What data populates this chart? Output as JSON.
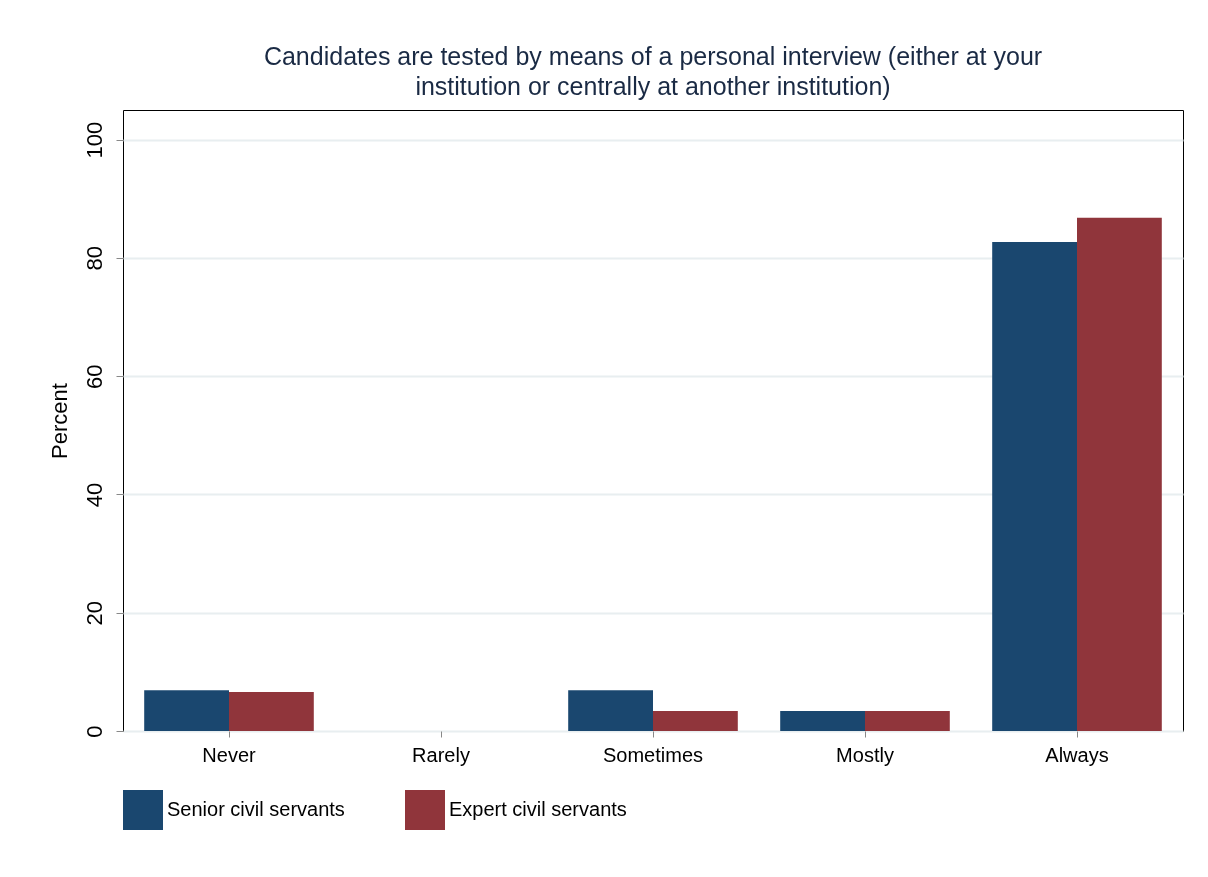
{
  "chart_data": {
    "type": "bar",
    "title": "Candidates are tested by means of a personal interview (either at your institution or centrally at another institution)",
    "ylabel": "Percent",
    "categories": [
      "Never",
      "Rarely",
      "Sometimes",
      "Mostly",
      "Always"
    ],
    "series": [
      {
        "name": "Senior civil servants",
        "color": "#1a476f",
        "values": [
          6.9,
          0,
          6.9,
          3.4,
          82.7
        ]
      },
      {
        "name": "Expert civil servants",
        "color": "#90353b",
        "values": [
          6.6,
          0,
          3.4,
          3.4,
          86.8
        ]
      }
    ],
    "ylim": [
      0,
      105
    ],
    "yticks": [
      0,
      20,
      40,
      60,
      80,
      100
    ],
    "grid": "y",
    "legend": "bottom"
  }
}
